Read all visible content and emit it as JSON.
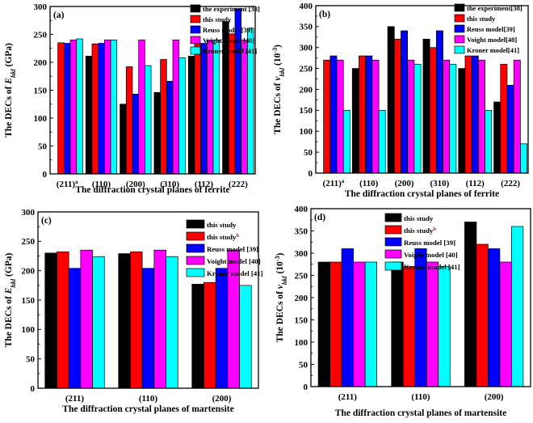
{
  "figure": {
    "colors": {
      "black": "#000000",
      "red": "#ff0000",
      "blue": "#0000ff",
      "magenta": "#ff00ff",
      "cyan": "#00ffff",
      "superscript_red": "#c00000"
    }
  },
  "chart_data": [
    {
      "panel_label": "(a)",
      "type": "bar",
      "xlabel": "The diffraction crystal planes of ferrite",
      "ylabel_pre": "The DECs of ",
      "ylabel_var": "E",
      "ylabel_sub": "hkl",
      "ylabel_post": " (GPa)",
      "ylim": [
        0,
        300
      ],
      "yticks": [
        "0",
        "50",
        "100",
        "150",
        "200",
        "250",
        "300"
      ],
      "categories": [
        "(211)",
        "(110)",
        "(200)",
        "(310)",
        "(112)",
        "(222)"
      ],
      "category_sup": "a",
      "series": [
        {
          "name": "the experiment [38]",
          "color": "#000000",
          "values": [
            null,
            211,
            125,
            146,
            211,
            273
          ]
        },
        {
          "name": "this study",
          "color": "#ff0000",
          "values": [
            235,
            233,
            192,
            205,
            233,
            251
          ]
        },
        {
          "name": "Reuss model [39]",
          "color": "#0000ff",
          "values": [
            234,
            234,
            143,
            166,
            234,
            296
          ]
        },
        {
          "name": "Voight model [40]",
          "color": "#ff00ff",
          "values": [
            240,
            240,
            240,
            240,
            240,
            240
          ]
        },
        {
          "name": "Kroner model [41]",
          "color": "#00ffff",
          "values": [
            242,
            240,
            194,
            208,
            240,
            261
          ]
        }
      ]
    },
    {
      "panel_label": "(b)",
      "type": "bar",
      "xlabel": "The diffraction crystal planes of ferrite",
      "ylabel_pre": "The DECs of ",
      "ylabel_var": "ν",
      "ylabel_sub": "hkl",
      "ylabel_post": " (10",
      "ylabel_sup": "-3",
      "ylabel_end": ")",
      "ylim": [
        0,
        400
      ],
      "yticks": [
        "0",
        "50",
        "100",
        "150",
        "200",
        "250",
        "300",
        "350",
        "400"
      ],
      "categories": [
        "(211)",
        "(110)",
        "(200)",
        "(310)",
        "(112)",
        "(222)"
      ],
      "category_sup": "a",
      "series": [
        {
          "name": "the experiment[38]",
          "color": "#000000",
          "values": [
            null,
            250,
            350,
            320,
            250,
            170
          ]
        },
        {
          "name": "this study",
          "color": "#ff0000",
          "values": [
            270,
            280,
            320,
            300,
            280,
            260
          ]
        },
        {
          "name": "Reuss model[39]",
          "color": "#0000ff",
          "values": [
            280,
            280,
            340,
            340,
            280,
            210
          ]
        },
        {
          "name": "Voight model[40]",
          "color": "#ff00ff",
          "values": [
            270,
            270,
            270,
            270,
            270,
            270
          ]
        },
        {
          "name": "Kroner model[41]",
          "color": "#00ffff",
          "values": [
            150,
            150,
            260,
            260,
            150,
            70
          ]
        }
      ]
    },
    {
      "panel_label": "(c)",
      "type": "bar",
      "xlabel": "The diffraction crystal planes of martensite",
      "ylabel_pre": "The DECs of ",
      "ylabel_var": "E",
      "ylabel_sub": "hkl",
      "ylabel_post": " (GPa)",
      "ylim": [
        0,
        300
      ],
      "yticks": [
        "0",
        "50",
        "100",
        "150",
        "200",
        "250",
        "300"
      ],
      "categories": [
        "(211)",
        "(110)",
        "(200)"
      ],
      "category_sup": "",
      "series": [
        {
          "name": "this study",
          "color": "#000000",
          "values": [
            230,
            229,
            177
          ]
        },
        {
          "name": "this study",
          "name_sup": "b",
          "color": "#ff0000",
          "values": [
            232,
            232,
            180
          ]
        },
        {
          "name": "Reuss model [39]",
          "color": "#0000ff",
          "values": [
            204,
            204,
            204
          ]
        },
        {
          "name": "Voight model [40]",
          "color": "#ff00ff",
          "values": [
            235,
            235,
            235
          ]
        },
        {
          "name": "Kroner model [41]",
          "color": "#00ffff",
          "values": [
            224,
            224,
            175
          ]
        }
      ]
    },
    {
      "panel_label": "(d)",
      "type": "bar",
      "xlabel": "The diffraction crystal planes of martensite",
      "ylabel_pre": "The DECs of ",
      "ylabel_var": "ν",
      "ylabel_sub": "hkl",
      "ylabel_post": " (10",
      "ylabel_sup": "-3",
      "ylabel_end": ")",
      "ylim": [
        0,
        400
      ],
      "yticks": [
        "0",
        "50",
        "100",
        "150",
        "200",
        "250",
        "300",
        "350",
        "400"
      ],
      "categories": [
        "(211)",
        "(110)",
        "(200)"
      ],
      "category_sup": "",
      "series": [
        {
          "name": "this study",
          "color": "#000000",
          "values": [
            280,
            280,
            370
          ]
        },
        {
          "name": "this study",
          "name_sup": "b",
          "color": "#ff0000",
          "values": [
            280,
            270,
            320
          ]
        },
        {
          "name": "Reuss model [39]",
          "color": "#0000ff",
          "values": [
            310,
            310,
            310
          ]
        },
        {
          "name": "Voight model [40]",
          "color": "#ff00ff",
          "values": [
            280,
            280,
            280
          ]
        },
        {
          "name": "Kroner model [41]",
          "color": "#00ffff",
          "values": [
            280,
            270,
            360
          ]
        }
      ]
    }
  ]
}
